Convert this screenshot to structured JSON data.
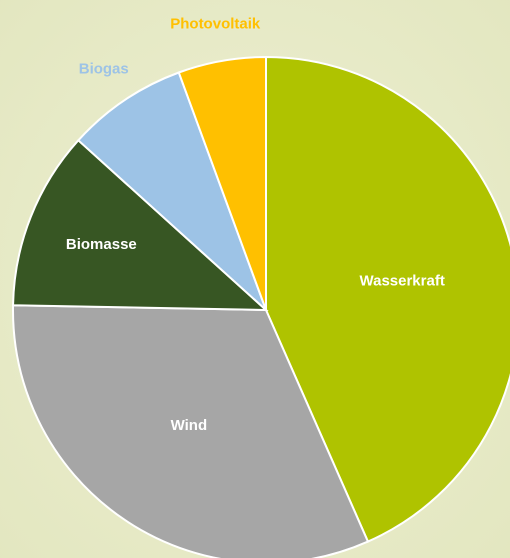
{
  "chart_data": {
    "type": "pie",
    "categories": [
      "Wasserkraft",
      "Wind",
      "Biomasse",
      "Biogas",
      "Photovoltaik"
    ],
    "values": [
      43.4,
      31.9,
      11.4,
      7.7,
      5.6
    ],
    "colors": [
      "#afc300",
      "#a6a6a6",
      "#375623",
      "#9dc3e6",
      "#ffc000"
    ]
  }
}
